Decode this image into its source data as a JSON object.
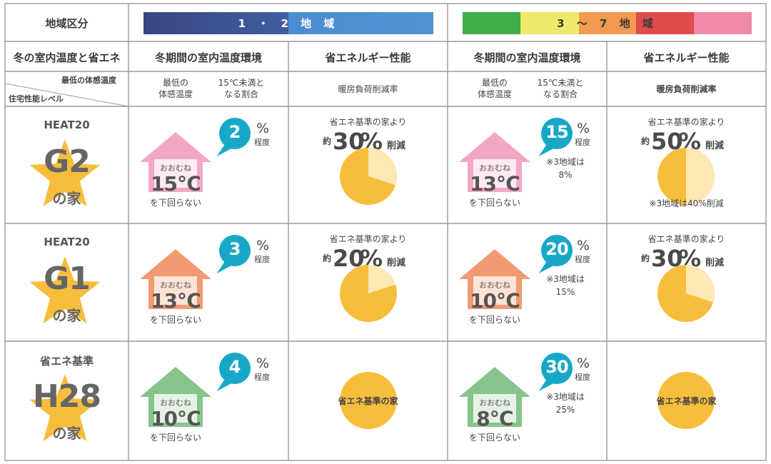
{
  "colors": {
    "zone12_left": "#3a4a8a",
    "zone12_right": "#4a90cf",
    "zone37": [
      "#3fae49",
      "#ede96a",
      "#f29a4f",
      "#e04b4b",
      "#ef8aa7"
    ],
    "house_g2": "#f3a7c6",
    "house_g1": "#f29a72",
    "house_h28": "#86c48c",
    "bubble": "#17a8c8",
    "pie": "#f7be3c",
    "pie_light": "#fde8b6"
  },
  "header": {
    "zone_label": "地域区分",
    "zone12": "1 ・ 2 地 域",
    "zone37": "3 〜 7 地 域",
    "row2_label": "冬の室内温度と省エネ",
    "env_label": "冬期間の室内温度環境",
    "perf_label": "省エネルギー性能",
    "corner_top": "最低の体感温度",
    "corner_bottom": "住宅性能レベル",
    "sub_min1": "最低の",
    "sub_min2": "体感温度",
    "sub_rate1": "15℃未満と",
    "sub_rate2": "なる割合",
    "sub_perf": "暖房負荷削減率"
  },
  "common": {
    "approx": "おおむね",
    "not_below": "を下回らない",
    "pct": "%",
    "degree_level": "程度",
    "base_house": "省エネ基準の家より",
    "approx_yaku": "約",
    "reduce": "削減",
    "pct_unit": "%"
  },
  "rows": [
    {
      "level_top": "HEAT20",
      "level_main": "G2",
      "level_ie": "の家",
      "z12_temp": "15℃",
      "z12_rate": "2",
      "z12_perf": "30",
      "z37_temp": "13℃",
      "z37_rate": "15",
      "z37_note1": "※3地域は",
      "z37_note2": "8%",
      "z37_perf": "50",
      "z37_perf_note": "※3地域は40%削減"
    },
    {
      "level_top": "HEAT20",
      "level_main": "G1",
      "level_ie": "の家",
      "z12_temp": "13℃",
      "z12_rate": "3",
      "z12_perf": "20",
      "z37_temp": "10℃",
      "z37_rate": "20",
      "z37_note1": "※3地域は",
      "z37_note2": "15%",
      "z37_perf": "30"
    },
    {
      "level_top": "省エネ基準",
      "level_main": "H28",
      "level_ie": "の家",
      "z12_temp": "10℃",
      "z12_rate": "4",
      "z12_perf_label": "省エネ基準の家",
      "z37_temp": "8℃",
      "z37_rate": "30",
      "z37_note1": "※3地域は",
      "z37_note2": "25%",
      "z37_perf_label": "省エネ基準の家"
    }
  ]
}
